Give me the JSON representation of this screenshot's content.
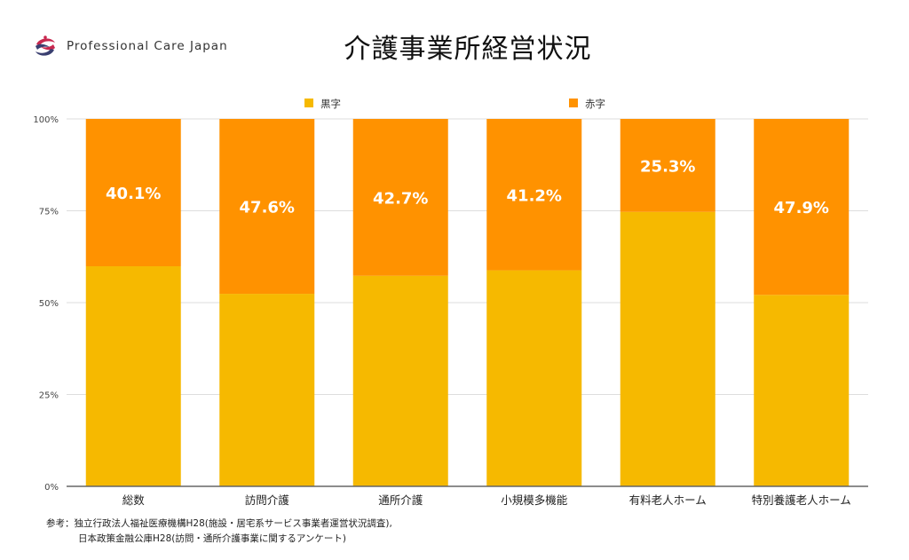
{
  "header": {
    "brand": "Professional Care Japan",
    "logo_icon": "hands-globe-logo-icon",
    "title": "介護事業所経営状況"
  },
  "colors": {
    "profit": "#F6B900",
    "loss": "#FF9200",
    "grid": "#dddddd",
    "axis": "#666666"
  },
  "chart_data": {
    "type": "bar",
    "stacked": true,
    "title": "介護事業所経営状況",
    "xlabel": "",
    "ylabel": "",
    "ylim": [
      0,
      100
    ],
    "yticks": [
      0,
      25,
      50,
      75,
      100
    ],
    "ytick_labels": [
      "0%",
      "25%",
      "50%",
      "75%",
      "100%"
    ],
    "grid": true,
    "legend_position": "top",
    "categories": [
      "総数",
      "訪問介護",
      "通所介護",
      "小規模多機能",
      "有料老人ホーム",
      "特別養護老人ホーム"
    ],
    "series": [
      {
        "name": "黒字",
        "values": [
          59.9,
          52.4,
          57.3,
          58.8,
          74.7,
          52.1
        ],
        "show_labels": false
      },
      {
        "name": "赤字",
        "values": [
          40.1,
          47.6,
          42.7,
          41.2,
          25.3,
          47.9
        ],
        "show_labels": true,
        "labels": [
          "40.1%",
          "47.6%",
          "42.7%",
          "41.2%",
          "25.3%",
          "47.9%"
        ]
      }
    ]
  },
  "footnote": {
    "line1": "参考：独立行政法人福祉医療機構H28(施設・居宅系サービス事業者運営状況調査),",
    "line2": "日本政策金融公庫H28(訪問・通所介護事業に関するアンケート)"
  }
}
